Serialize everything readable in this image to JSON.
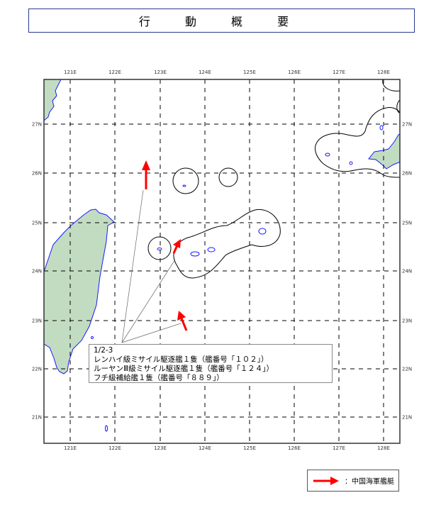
{
  "title": "行 動 概 要",
  "map": {
    "lon_labels": [
      "121E",
      "122E",
      "123E",
      "124E",
      "125E",
      "126E",
      "127E",
      "128E"
    ],
    "lat_labels": [
      "27N",
      "26N",
      "25N",
      "24N",
      "23N",
      "22N",
      "21N"
    ],
    "colors": {
      "land": "#c2dcc2",
      "coast": "#1a1aff",
      "arrow": "#ff0000",
      "grid": "#000000"
    }
  },
  "info_box": {
    "date": "1/2-3",
    "lines": [
      "レンハイ級ミサイル駆逐艦１隻（艦番号「１０２」）",
      "ルーヤンⅢ級ミサイル駆逐艦１隻（艦番号「１２４」）",
      "フチ級補給艦１隻（艦番号「８８９」）"
    ]
  },
  "legend": {
    "icon": "red-arrow-icon",
    "label": "：中国海軍艦艇"
  }
}
